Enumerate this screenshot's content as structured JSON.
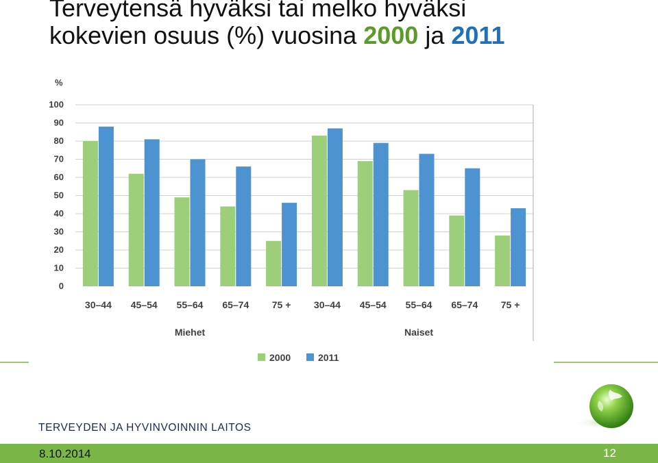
{
  "slide": {
    "title_line1": "Terveytensä hyväksi tai melko hyväksi",
    "title_line2_prefix": "kokevien osuus (%) vuosina ",
    "title_year1": "2000",
    "title_mid": " ja ",
    "title_year2": "2011"
  },
  "footer": {
    "org_name": "TERVEYDEN JA HYVINVOINNIN LAITOS",
    "date": "8.10.2014",
    "page_number": "12",
    "bar_color": "#7ab648"
  },
  "logo": {
    "icon": "green-globe-icon"
  },
  "chart_data": {
    "type": "bar",
    "title": "",
    "ylabel": "%",
    "xlabel": "",
    "ylim": [
      0,
      100
    ],
    "yticks": [
      0,
      10,
      20,
      30,
      40,
      50,
      60,
      70,
      80,
      90,
      100
    ],
    "grid": true,
    "legend_position": "bottom",
    "groups": [
      {
        "label": "Miehet",
        "categories": [
          "30–44",
          "45–54",
          "55–64",
          "65–74",
          "75 +"
        ]
      },
      {
        "label": "Naiset",
        "categories": [
          "30–44",
          "45–54",
          "55–64",
          "65–74",
          "75 +"
        ]
      }
    ],
    "categories": [
      "30–44",
      "45–54",
      "55–64",
      "65–74",
      "75 +",
      "30–44",
      "45–54",
      "55–64",
      "65–74",
      "75 +"
    ],
    "series": [
      {
        "name": "2000",
        "color": "#9dcf7a",
        "values": [
          80,
          62,
          49,
          44,
          25,
          83,
          69,
          53,
          39,
          28
        ]
      },
      {
        "name": "2011",
        "color": "#4e93d1",
        "values": [
          88,
          81,
          70,
          66,
          46,
          87,
          79,
          73,
          65,
          43
        ]
      }
    ]
  }
}
